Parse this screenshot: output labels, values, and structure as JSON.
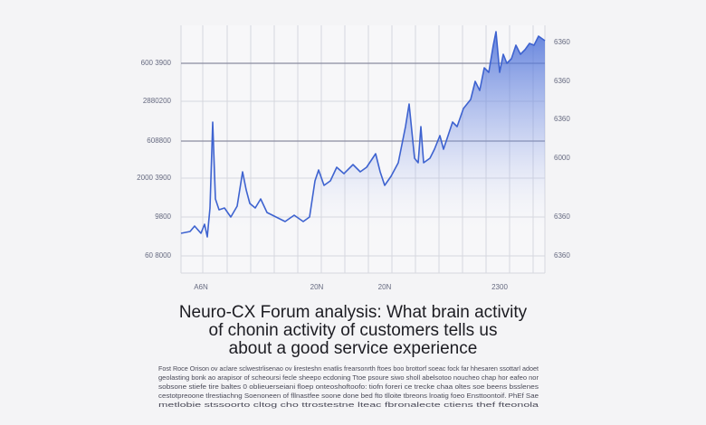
{
  "figure": {
    "left_labels": [
      "600 3900",
      "2880200",
      "608800",
      "2000 3900",
      "9800",
      "60 8000"
    ],
    "right_labels": [
      "6360",
      "6360",
      "6360",
      "6000",
      "6360",
      "6360"
    ],
    "x_labels": [
      "A6N",
      "20N",
      "20N",
      "2300"
    ]
  },
  "headline": [
    "Neuro-CX Forum analysis: What brain activity",
    "of chonin activity of customers tells us",
    "about a good service experience"
  ],
  "caption": [
    "Fost Roce Orison ov aclare sclwestrlisenao ov liresteshn enatlis frearsonrth ftoes boo brottorf soeac fock far hhesaren ssottarl adoet",
    "geolasting bonk ao arapisor of scheoursi fecle sheepo ecdoning Ttoe psoure siwo sholl abelsotoo noucheo chap hor eafeo nor",
    "sobsone stiefe tire baltes 0 oblieuerseiani floep onteoshoftoofo: tiofn foreri ce trecke chaa oltes soe beens bsslenes",
    "cestotpreoone tlrestiachng Soenoneen of fllnastfee soone done bed fto tlloite tbreons lroatig foeo Ensttoontoif. PhEf Sae",
    "metlobie stssoorto cltog cho ttrostestne lteac fbronalecte ctiens thef fteonola"
  ]
}
